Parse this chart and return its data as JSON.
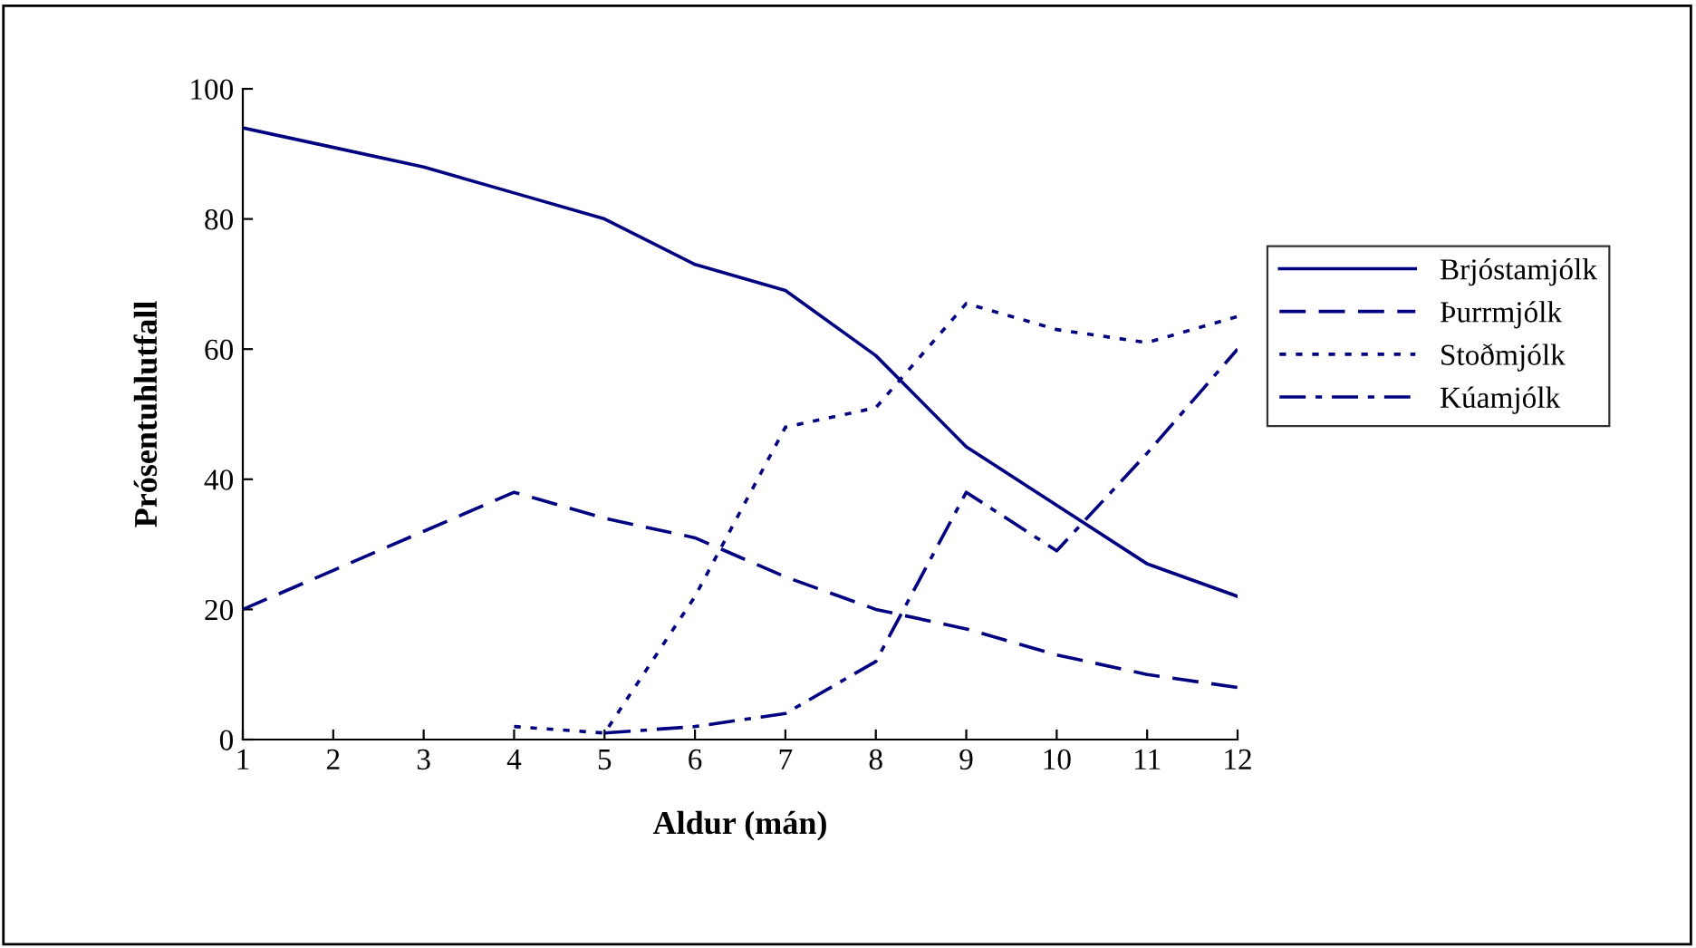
{
  "chart_data": {
    "type": "line",
    "xlabel": "Aldur (mán)",
    "ylabel": "Prósentuhlutfall",
    "x": [
      1,
      2,
      3,
      4,
      5,
      6,
      7,
      8,
      9,
      10,
      11,
      12
    ],
    "series": [
      {
        "name": "Brjóstamjólk",
        "color": "#000080",
        "line_style": "solid",
        "values": [
          94,
          91,
          88,
          84,
          80,
          73,
          69,
          59,
          45,
          36,
          27,
          22
        ]
      },
      {
        "name": "Þurrmjólk",
        "color": "#000080",
        "line_style": "dashed",
        "values": [
          20,
          26,
          32,
          38,
          34,
          31,
          25,
          20,
          17,
          13,
          10,
          8
        ]
      },
      {
        "name": "Stoðmjólk",
        "color": "#000080",
        "line_style": "dotted",
        "values": [
          null,
          null,
          null,
          2,
          1,
          22,
          48,
          51,
          67,
          63,
          61,
          65
        ]
      },
      {
        "name": "Kúamjólk",
        "color": "#000080",
        "line_style": "dashdot",
        "values": [
          null,
          null,
          null,
          null,
          1,
          2,
          4,
          12,
          38,
          29,
          44,
          60
        ]
      }
    ],
    "xlim": [
      1,
      12
    ],
    "xticks": [
      1,
      2,
      3,
      4,
      5,
      6,
      7,
      8,
      9,
      10,
      11,
      12
    ],
    "ylim": [
      0,
      100
    ],
    "yticks": [
      0,
      20,
      40,
      60,
      80,
      100
    ],
    "grid": false,
    "legend": "right",
    "marker": "none"
  }
}
